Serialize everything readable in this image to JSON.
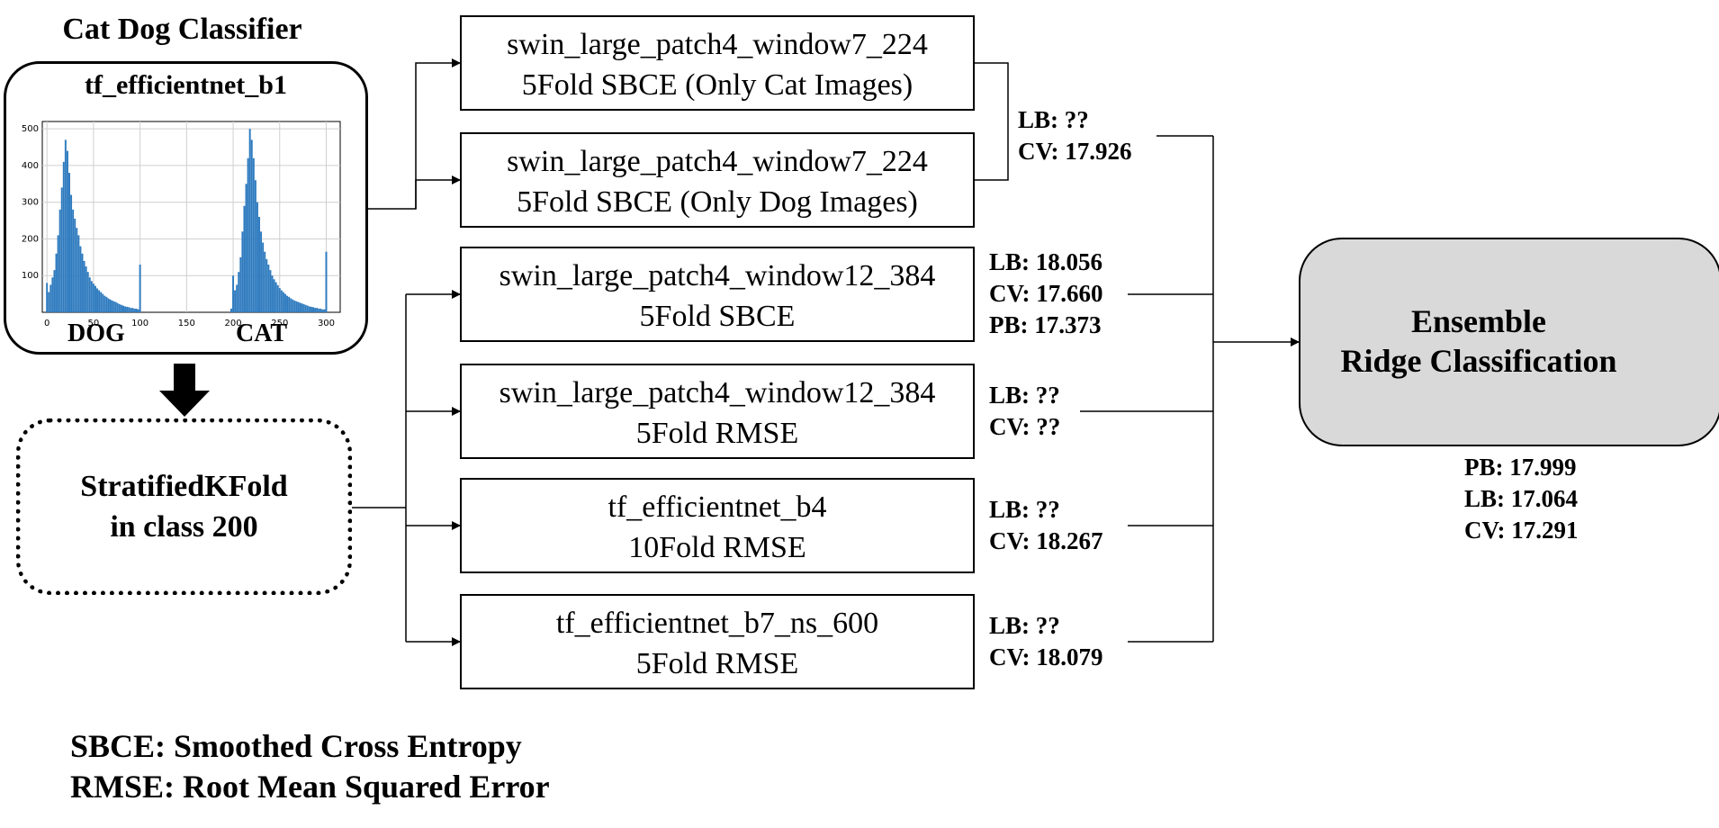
{
  "title": "Cat Dog Classifier",
  "classifier": {
    "name": "tf_efficientnet_b1",
    "histogram": {
      "x_ticks": [
        "0",
        "50",
        "100",
        "150",
        "200",
        "250",
        "300"
      ],
      "y_ticks": [
        "100",
        "200",
        "300",
        "400",
        "500"
      ],
      "dog_label": "DOG",
      "cat_label": "CAT"
    }
  },
  "split": {
    "line1": "StratifiedKFold",
    "line2": "in class 200"
  },
  "models": [
    {
      "name": "swin_large_patch4_window7_224",
      "detail": "5Fold SBCE (Only Cat Images)"
    },
    {
      "name": "swin_large_patch4_window7_224",
      "detail": "5Fold SBCE (Only Dog Images)"
    },
    {
      "name": "swin_large_patch4_window12_384",
      "detail": "5Fold SBCE"
    },
    {
      "name": "swin_large_patch4_window12_384",
      "detail": "5Fold RMSE"
    },
    {
      "name": "tf_efficientnet_b4",
      "detail": "10Fold RMSE"
    },
    {
      "name": "tf_efficientnet_b7_ns_600",
      "detail": "5Fold RMSE"
    }
  ],
  "scores": [
    {
      "lines": [
        "LB: ??",
        "CV: 17.926"
      ]
    },
    {
      "lines": [
        "LB: 18.056",
        "CV: 17.660",
        "PB: 17.373"
      ]
    },
    {
      "lines": [
        "LB: ??",
        "CV: ??"
      ]
    },
    {
      "lines": [
        "LB: ??",
        "CV: 18.267"
      ]
    },
    {
      "lines": [
        "LB: ??",
        "CV: 18.079"
      ]
    }
  ],
  "ensemble": {
    "line1": "Ensemble",
    "line2": "Ridge Classification",
    "scores": [
      "PB: 17.999",
      "LB: 17.064",
      "CV: 17.291"
    ]
  },
  "legend": [
    "SBCE: Smoothed Cross Entropy",
    "RMSE: Root Mean Squared Error"
  ],
  "chart_data": {
    "type": "bar",
    "title": "",
    "xlabel": "",
    "ylabel": "",
    "xlim": [
      -5,
      315
    ],
    "ylim": [
      0,
      520
    ],
    "grid": true,
    "bar_color": "#2f7bbf",
    "x": [
      0,
      2,
      4,
      6,
      8,
      10,
      12,
      14,
      16,
      18,
      20,
      22,
      24,
      26,
      28,
      30,
      32,
      34,
      36,
      38,
      40,
      42,
      44,
      46,
      48,
      50,
      52,
      54,
      56,
      58,
      60,
      62,
      64,
      66,
      68,
      70,
      72,
      74,
      76,
      78,
      80,
      82,
      84,
      86,
      88,
      90,
      92,
      94,
      96,
      98,
      100,
      198,
      200,
      202,
      204,
      206,
      208,
      210,
      212,
      214,
      216,
      218,
      220,
      222,
      224,
      226,
      228,
      230,
      232,
      234,
      236,
      238,
      240,
      242,
      244,
      246,
      248,
      250,
      252,
      254,
      256,
      258,
      260,
      262,
      264,
      266,
      268,
      270,
      272,
      274,
      276,
      278,
      280,
      282,
      284,
      286,
      288,
      290,
      292,
      294,
      296,
      298,
      300
    ],
    "values": [
      80,
      55,
      75,
      95,
      115,
      160,
      210,
      280,
      340,
      410,
      470,
      440,
      380,
      320,
      280,
      255,
      230,
      210,
      180,
      160,
      140,
      125,
      110,
      95,
      85,
      78,
      72,
      65,
      60,
      55,
      50,
      45,
      42,
      38,
      35,
      32,
      30,
      28,
      25,
      22,
      20,
      18,
      16,
      15,
      14,
      12,
      12,
      10,
      10,
      8,
      130,
      10,
      100,
      60,
      75,
      110,
      150,
      220,
      290,
      350,
      420,
      500,
      470,
      420,
      360,
      300,
      260,
      220,
      190,
      165,
      145,
      130,
      115,
      100,
      90,
      82,
      74,
      66,
      60,
      55,
      50,
      45,
      42,
      38,
      35,
      32,
      30,
      28,
      26,
      24,
      22,
      20,
      18,
      16,
      15,
      14,
      12,
      12,
      10,
      10,
      8,
      8,
      165
    ]
  }
}
